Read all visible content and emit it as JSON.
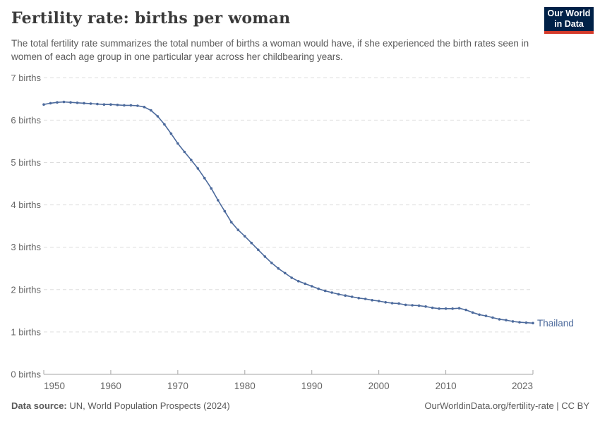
{
  "header": {
    "title": "Fertility rate: births per woman",
    "subtitle": "The total fertility rate summarizes the total number of births a woman would have, if she experienced the birth rates seen in women of each age group in one particular year across her childbearing years.",
    "logo": {
      "line1": "Our World",
      "line2": "in Data",
      "bg_color": "#002147",
      "accent_color": "#D43A2B"
    }
  },
  "chart_data": {
    "type": "line",
    "title": "Fertility rate: births per woman",
    "entity_label": "Thailand",
    "x": [
      1950,
      1951,
      1952,
      1953,
      1954,
      1955,
      1956,
      1957,
      1958,
      1959,
      1960,
      1961,
      1962,
      1963,
      1964,
      1965,
      1966,
      1967,
      1968,
      1969,
      1970,
      1971,
      1972,
      1973,
      1974,
      1975,
      1976,
      1977,
      1978,
      1979,
      1980,
      1981,
      1982,
      1983,
      1984,
      1985,
      1986,
      1987,
      1988,
      1989,
      1990,
      1991,
      1992,
      1993,
      1994,
      1995,
      1996,
      1997,
      1998,
      1999,
      2000,
      2001,
      2002,
      2003,
      2004,
      2005,
      2006,
      2007,
      2008,
      2009,
      2010,
      2011,
      2012,
      2013,
      2014,
      2015,
      2016,
      2017,
      2018,
      2019,
      2020,
      2021,
      2022,
      2023
    ],
    "series": [
      {
        "name": "Thailand",
        "values": [
          6.37,
          6.4,
          6.42,
          6.43,
          6.42,
          6.41,
          6.4,
          6.39,
          6.38,
          6.37,
          6.37,
          6.36,
          6.35,
          6.35,
          6.34,
          6.31,
          6.23,
          6.09,
          5.9,
          5.68,
          5.45,
          5.25,
          5.06,
          4.86,
          4.63,
          4.39,
          4.11,
          3.85,
          3.59,
          3.41,
          3.26,
          3.1,
          2.94,
          2.78,
          2.63,
          2.5,
          2.39,
          2.28,
          2.2,
          2.14,
          2.08,
          2.02,
          1.97,
          1.93,
          1.89,
          1.86,
          1.83,
          1.8,
          1.78,
          1.75,
          1.73,
          1.7,
          1.68,
          1.67,
          1.64,
          1.63,
          1.62,
          1.6,
          1.57,
          1.55,
          1.55,
          1.55,
          1.56,
          1.52,
          1.46,
          1.41,
          1.38,
          1.34,
          1.3,
          1.28,
          1.25,
          1.23,
          1.22,
          1.21
        ]
      }
    ],
    "xlim": [
      1950,
      2023
    ],
    "ylim": [
      0,
      7
    ],
    "x_ticks": [
      1950,
      1960,
      1970,
      1980,
      1990,
      2000,
      2010,
      2023
    ],
    "y_ticks": [
      0,
      1,
      2,
      3,
      4,
      5,
      6,
      7
    ],
    "y_tick_suffix": " births",
    "grid": "horizontal-dashed",
    "legend_position": "end-of-line",
    "line_color": "#4C6A9C",
    "grid_color": "#dddddd",
    "axis_color": "#a5a5a5",
    "tick_label_color": "#666666"
  },
  "footer": {
    "source_label": "Data source:",
    "source_text": " UN, World Population Prospects (2024)",
    "credit": "OurWorldinData.org/fertility-rate | CC BY"
  }
}
